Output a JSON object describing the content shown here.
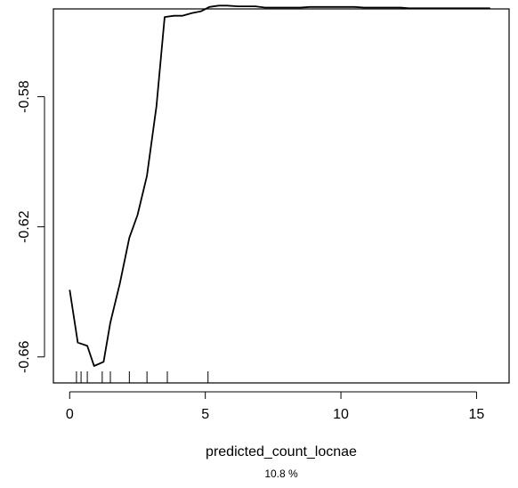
{
  "chart_data": {
    "type": "line",
    "title": "",
    "xlabel": "predicted_count_locnae",
    "ylabel": "",
    "footnote": "10.8 %",
    "xlim": [
      -0.6,
      16.2
    ],
    "ylim": [
      -0.668,
      -0.553
    ],
    "x_ticks": [
      0,
      5,
      10,
      15
    ],
    "x_tick_labels": [
      "0",
      "5",
      "10",
      "15"
    ],
    "y_ticks": [
      -0.66,
      -0.62,
      -0.58
    ],
    "y_tick_labels": [
      "-0.66",
      "-0.62",
      "-0.58"
    ],
    "grid": false,
    "legend": "none",
    "line_color": "#000000",
    "series": [
      {
        "x": [
          0,
          0.3,
          0.65,
          0.9,
          1.25,
          1.5,
          1.85,
          2.2,
          2.5,
          2.85,
          3.2,
          3.5,
          3.85,
          4.15,
          4.5,
          4.85,
          5.15,
          5.5,
          5.8,
          6.2,
          6.5,
          6.85,
          7.2,
          7.5,
          7.85,
          8.2,
          8.5,
          8.85,
          9.2,
          9.5,
          9.85,
          10.2,
          10.5,
          10.85,
          11.2,
          11.5,
          11.85,
          12.2,
          12.5,
          12.85,
          13.2,
          13.5,
          13.85,
          14.2,
          14.5,
          14.85,
          15.2,
          15.5
        ],
        "y": [
          -0.6394,
          -0.6556,
          -0.6566,
          -0.6628,
          -0.6615,
          -0.6494,
          -0.6374,
          -0.6234,
          -0.6164,
          -0.6043,
          -0.5829,
          -0.5555,
          -0.5551,
          -0.5551,
          -0.5543,
          -0.5537,
          -0.5524,
          -0.552,
          -0.552,
          -0.5522,
          -0.5522,
          -0.5522,
          -0.5526,
          -0.5526,
          -0.5526,
          -0.5526,
          -0.5526,
          -0.5524,
          -0.5524,
          -0.5524,
          -0.5524,
          -0.5524,
          -0.5524,
          -0.5526,
          -0.5526,
          -0.5526,
          -0.5526,
          -0.5526,
          -0.5528,
          -0.5528,
          -0.5528,
          -0.5528,
          -0.5528,
          -0.5528,
          -0.5528,
          -0.5528,
          -0.5528,
          -0.5528
        ]
      }
    ],
    "rug_x": [
      0.25,
      0.42,
      0.65,
      1.2,
      1.5,
      2.2,
      2.85,
      3.6,
      5.1
    ]
  }
}
